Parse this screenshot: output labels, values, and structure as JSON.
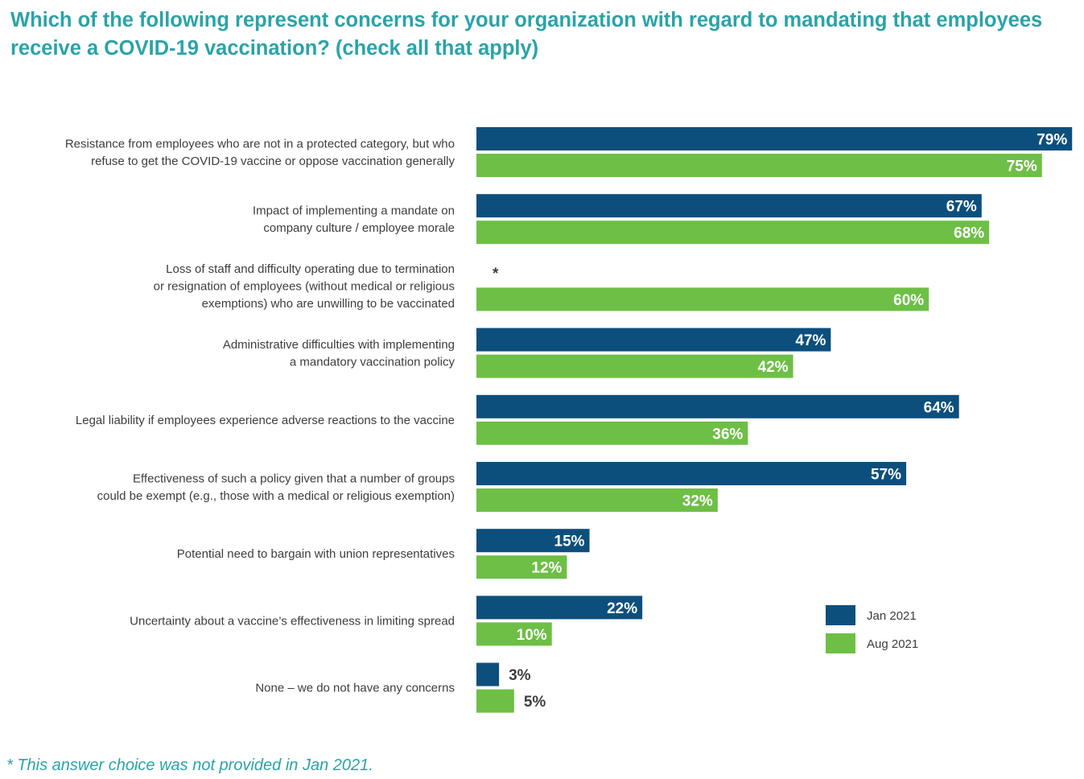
{
  "title": "Which of the following represent concerns for your organization with regard to mandating that employees receive a COVID-19 vaccination? (check all that apply)",
  "footnote": "* This answer choice was not provided in Jan 2021.",
  "colors": {
    "jan": "#0d4f7c",
    "aug": "#6dbf45",
    "title": "#2ba3a8"
  },
  "chart_data": {
    "type": "bar",
    "orientation": "horizontal",
    "xlim": [
      0,
      100
    ],
    "unit": "%",
    "legend_position": "bottom-right",
    "categories": [
      [
        "Resistance from employees who are not in a protected category, but who",
        "refuse to get the COVID-19 vaccine or oppose vaccination generally"
      ],
      [
        "Impact of implementing a mandate on",
        "company culture / employee morale"
      ],
      [
        "Loss of staff and difficulty operating due to termination",
        "or resignation of employees (without medical or religious",
        "exemptions) who are unwilling to be vaccinated"
      ],
      [
        "Administrative difficulties with implementing",
        "a mandatory vaccination policy"
      ],
      [
        "Legal liability if employees experience adverse reactions to the vaccine"
      ],
      [
        "Effectiveness of such a policy given that a number of groups",
        "could be exempt (e.g., those with a medical or religious exemption)"
      ],
      [
        "Potential need to bargain with union representatives"
      ],
      [
        "Uncertainty about a vaccine’s effectiveness in limiting spread"
      ],
      [
        "None – we do not have any concerns"
      ]
    ],
    "series": [
      {
        "name": "Jan 2021",
        "values": [
          79,
          67,
          null,
          47,
          64,
          57,
          15,
          22,
          3
        ],
        "labels": [
          "79%",
          "67%",
          "*",
          "47%",
          "64%",
          "57%",
          "15%",
          "22%",
          "3%"
        ]
      },
      {
        "name": "Aug 2021",
        "values": [
          75,
          68,
          60,
          42,
          36,
          32,
          12,
          10,
          5
        ],
        "labels": [
          "75%",
          "68%",
          "60%",
          "42%",
          "36%",
          "32%",
          "12%",
          "10%",
          "5%"
        ]
      }
    ]
  }
}
